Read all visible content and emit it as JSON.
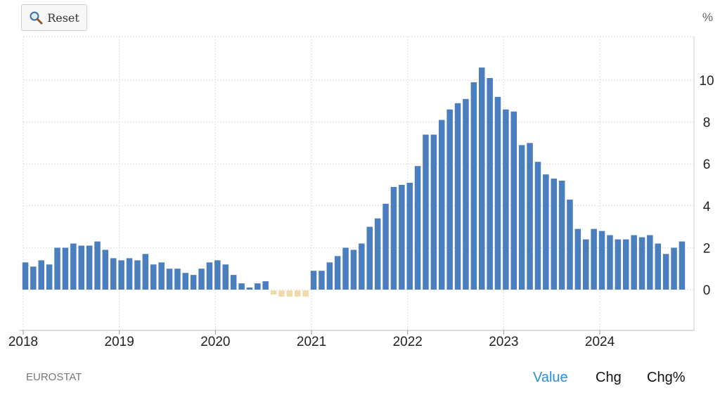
{
  "toolbar": {
    "reset_label": "Reset",
    "reset_icon": "magnifier-icon"
  },
  "source": "EUROSTAT",
  "tabs": [
    {
      "label": "Value",
      "active": true
    },
    {
      "label": "Chg",
      "active": false
    },
    {
      "label": "Chg%",
      "active": false
    }
  ],
  "colors": {
    "positive": "#4a7ebf",
    "negative": "#f2d9a8",
    "grid": "#dddddd",
    "active_tab": "#2b8ddb"
  },
  "chart_data": {
    "type": "bar",
    "unit": "%",
    "ylim": [
      -1.9,
      12.2
    ],
    "yticks": [
      0,
      2,
      4,
      6,
      8,
      10
    ],
    "xlim": [
      2018.0,
      2024.98
    ],
    "xticks": [
      2018,
      2019,
      2020,
      2021,
      2022,
      2023,
      2024
    ],
    "grid": true,
    "start": "2018-01",
    "series": [
      {
        "values": [
          1.3,
          1.1,
          1.4,
          1.2,
          2.0,
          2.0,
          2.2,
          2.1,
          2.1,
          2.3,
          1.9,
          1.5,
          1.4,
          1.5,
          1.4,
          1.7,
          1.2,
          1.3,
          1.0,
          1.0,
          0.8,
          0.7,
          1.0,
          1.3,
          1.4,
          1.2,
          0.7,
          0.3,
          0.1,
          0.3,
          0.4,
          -0.2,
          -0.3,
          -0.3,
          -0.3,
          -0.3,
          0.9,
          0.9,
          1.3,
          1.6,
          2.0,
          1.9,
          2.2,
          3.0,
          3.4,
          4.1,
          4.9,
          5.0,
          5.1,
          5.9,
          7.4,
          7.4,
          8.1,
          8.6,
          8.9,
          9.1,
          9.9,
          10.6,
          10.1,
          9.2,
          8.6,
          8.5,
          6.9,
          7.0,
          6.1,
          5.5,
          5.3,
          5.2,
          4.3,
          2.9,
          2.4,
          2.9,
          2.8,
          2.6,
          2.4,
          2.4,
          2.6,
          2.5,
          2.6,
          2.2,
          1.7,
          2.0,
          2.3
        ]
      }
    ]
  }
}
